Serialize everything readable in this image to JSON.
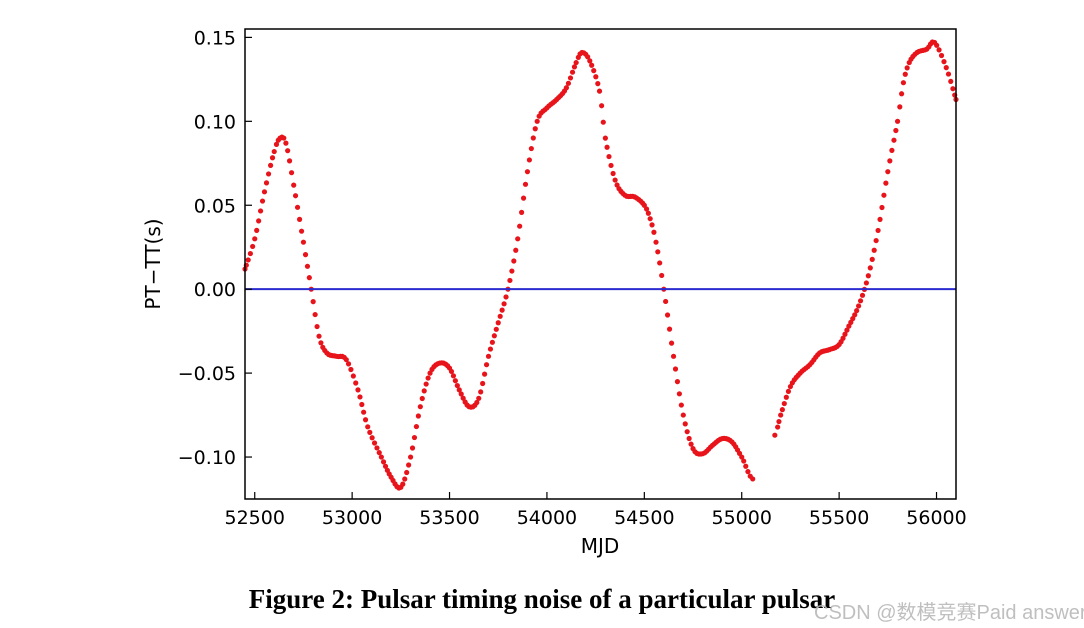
{
  "figure": {
    "caption": "Figure 2: Pulsar timing noise of a particular pulsar",
    "watermark": "CSDN @数模竞赛Paid answer"
  },
  "chart_data": {
    "type": "scatter",
    "title": "",
    "xlabel": "MJD",
    "ylabel": "PT−TT(s)",
    "xlim": [
      52450,
      56100
    ],
    "ylim": [
      -0.125,
      0.155
    ],
    "xticks": [
      52500,
      53000,
      53500,
      54000,
      54500,
      55000,
      55500,
      56000
    ],
    "xtick_labels": [
      "52500",
      "53000",
      "53500",
      "54000",
      "54500",
      "55000",
      "55500",
      "56000"
    ],
    "yticks": [
      -0.1,
      -0.05,
      0.0,
      0.05,
      0.1,
      0.15
    ],
    "ytick_labels": [
      "−0.10",
      "−0.05",
      "0.00",
      "0.05",
      "0.10",
      "0.15"
    ],
    "grid": false,
    "legend": "none",
    "colors": {
      "points": "#e8141b",
      "zero_line": "#2b2bd0",
      "frame": "#000000"
    },
    "reference_line": {
      "y": 0.0
    },
    "gap": [
      55070,
      55170
    ],
    "series": [
      {
        "x": [
          52450,
          52500,
          52550,
          52600,
          52630,
          52660,
          52700,
          52750,
          52790,
          52830,
          52870,
          52920,
          52970,
          53030,
          53080,
          53150,
          53200,
          53250,
          53300,
          53350,
          53400,
          53450,
          53500,
          53550,
          53600,
          53650,
          53700,
          53750,
          53800,
          53850,
          53900,
          53950,
          54000,
          54050,
          54100,
          54150,
          54180,
          54220,
          54270,
          54300,
          54350,
          54400,
          54450,
          54500,
          54530,
          54560,
          54600,
          54650,
          54700,
          54750,
          54800,
          54850,
          54900,
          54950,
          55000,
          55070,
          55170,
          55200,
          55250,
          55300,
          55350,
          55400,
          55450,
          55500,
          55550,
          55600,
          55650,
          55700,
          55750,
          55800,
          55830,
          55860,
          55900,
          55950,
          55990,
          56050,
          56100
        ],
        "y": [
          0.012,
          0.03,
          0.058,
          0.082,
          0.09,
          0.087,
          0.062,
          0.028,
          0.0,
          -0.028,
          -0.038,
          -0.04,
          -0.042,
          -0.06,
          -0.082,
          -0.1,
          -0.112,
          -0.118,
          -0.1,
          -0.07,
          -0.05,
          -0.044,
          -0.047,
          -0.06,
          -0.07,
          -0.065,
          -0.04,
          -0.02,
          0.0,
          0.03,
          0.07,
          0.1,
          0.108,
          0.113,
          0.12,
          0.135,
          0.141,
          0.136,
          0.118,
          0.09,
          0.065,
          0.056,
          0.055,
          0.05,
          0.042,
          0.028,
          0.0,
          -0.04,
          -0.075,
          -0.095,
          -0.098,
          -0.093,
          -0.089,
          -0.091,
          -0.1,
          -0.113,
          -0.087,
          -0.075,
          -0.058,
          -0.05,
          -0.045,
          -0.038,
          -0.036,
          -0.033,
          -0.022,
          -0.01,
          0.008,
          0.035,
          0.07,
          0.1,
          0.123,
          0.135,
          0.141,
          0.143,
          0.147,
          0.132,
          0.113
        ]
      }
    ]
  }
}
